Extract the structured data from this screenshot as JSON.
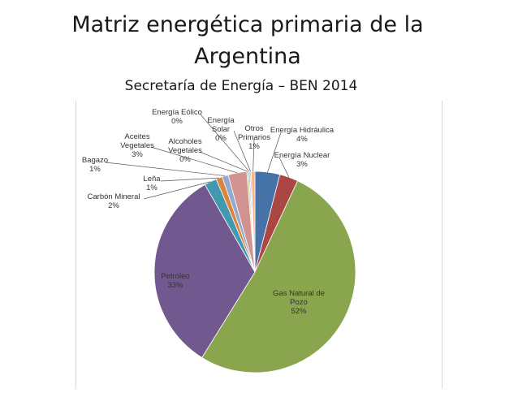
{
  "slide": {
    "title_line1": "Matriz energética primaria de la",
    "title_line2": "Argentina",
    "subtitle": "Secretaría de Energía – BEN 2014"
  },
  "chart_data": {
    "type": "pie",
    "slices": [
      {
        "label": "Energía Hidráulica",
        "pct_label": "4%",
        "value": 4,
        "color": "#4573a7"
      },
      {
        "label": "Energía Nuclear",
        "pct_label": "3%",
        "value": 3,
        "color": "#aa4644"
      },
      {
        "label": "Gas Natural de Pozo",
        "pct_label": "52%",
        "value": 52,
        "color": "#89a54e"
      },
      {
        "label": "Petróleo",
        "pct_label": "33%",
        "value": 33,
        "color": "#71588f"
      },
      {
        "label": "Carbón Mineral",
        "pct_label": "2%",
        "value": 2,
        "color": "#4298af"
      },
      {
        "label": "Leña",
        "pct_label": "1%",
        "value": 1,
        "color": "#db843d"
      },
      {
        "label": "Bagazo",
        "pct_label": "1%",
        "value": 1,
        "color": "#93a9cf"
      },
      {
        "label": "Aceites Vegetales",
        "pct_label": "3%",
        "value": 3,
        "color": "#d19392"
      },
      {
        "label": "Alcoholes Vegetales",
        "pct_label": "0%",
        "value": 0.3,
        "color": "#b9cd96"
      },
      {
        "label": "Energía Eólico",
        "pct_label": "0%",
        "value": 0.2,
        "color": "#a99bbd"
      },
      {
        "label": "Energía Solar",
        "pct_label": "0%",
        "value": 0.2,
        "color": "#91c3d5"
      },
      {
        "label": "Otros Primarios",
        "pct_label": "1%",
        "value": 0.6,
        "color": "#f9b589"
      }
    ]
  }
}
